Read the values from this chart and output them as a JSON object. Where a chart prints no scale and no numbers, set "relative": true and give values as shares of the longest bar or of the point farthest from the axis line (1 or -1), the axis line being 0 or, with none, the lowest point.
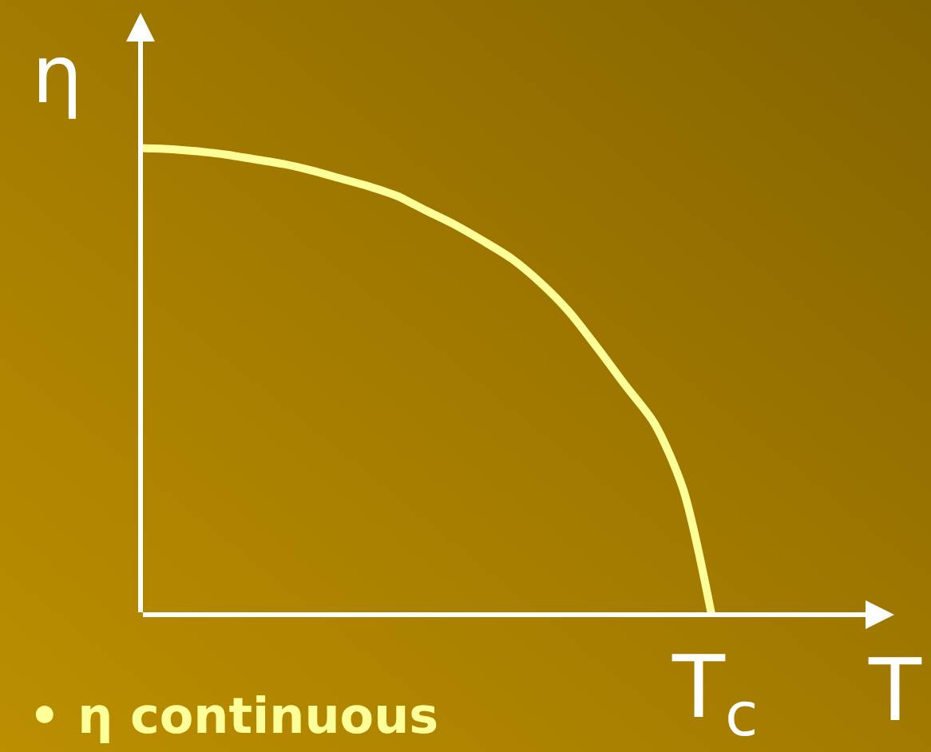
{
  "chart_data": {
    "type": "line",
    "relative": true,
    "xlabel": "T",
    "ylabel": "η",
    "annotations": [
      "T$_{c}$",
      "• η continuous"
    ],
    "categories": [
      null,
      null,
      null,
      null,
      null,
      null,
      null,
      null,
      null,
      null,
      null,
      null,
      null,
      null,
      null,
      null,
      null,
      null,
      null,
      null,
      null
    ],
    "series": [
      {
        "color": "#ffff99",
        "values": [
          1,
          0.998,
          0.993,
          0.986,
          0.976,
          0.966,
          0.952,
          0.935,
          0.918,
          0.897,
          0.866,
          0.836,
          0.801,
          0.763,
          0.712,
          0.65,
          0.572,
          0.49,
          0.41,
          0.27,
          0
        ]
      }
    ],
    "marker": "none",
    "line_style": "solid"
  }
}
